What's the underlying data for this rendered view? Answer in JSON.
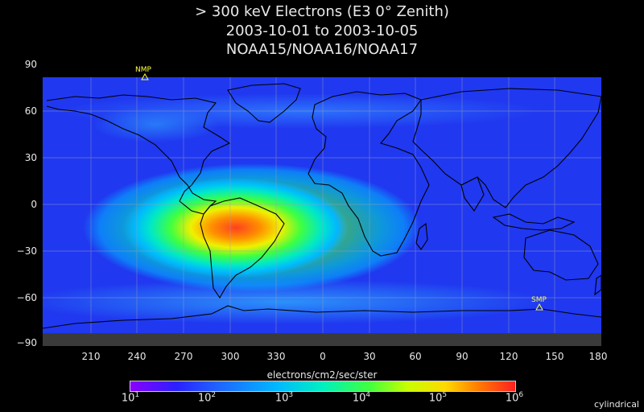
{
  "header": {
    "title": "> 300 keV  Electrons (E3 0° Zenith)",
    "date_range": "2003-10-01 to 2003-10-05",
    "satellites": "NOAA15/NOAA16/NOAA17"
  },
  "axes": {
    "lat_ticks": [
      "90",
      "60",
      "30",
      "0",
      "−30",
      "−60",
      "−90"
    ],
    "lon_ticks": [
      "210",
      "240",
      "270",
      "300",
      "330",
      "0",
      "30",
      "60",
      "90",
      "120",
      "150",
      "180"
    ]
  },
  "markers": {
    "north_pole": "NMP",
    "south_pole": "SMP"
  },
  "colorbar": {
    "label": "electrons/cm2/sec/ster",
    "ticks": [
      {
        "base": "10",
        "exp": "1"
      },
      {
        "base": "10",
        "exp": "2"
      },
      {
        "base": "10",
        "exp": "3"
      },
      {
        "base": "10",
        "exp": "4"
      },
      {
        "base": "10",
        "exp": "5"
      },
      {
        "base": "10",
        "exp": "6"
      }
    ],
    "colors": [
      "#8a00ff",
      "#2a20ff",
      "#00b8ff",
      "#40ff40",
      "#ffd800",
      "#ff2020"
    ]
  },
  "projection": "cylindrical"
}
